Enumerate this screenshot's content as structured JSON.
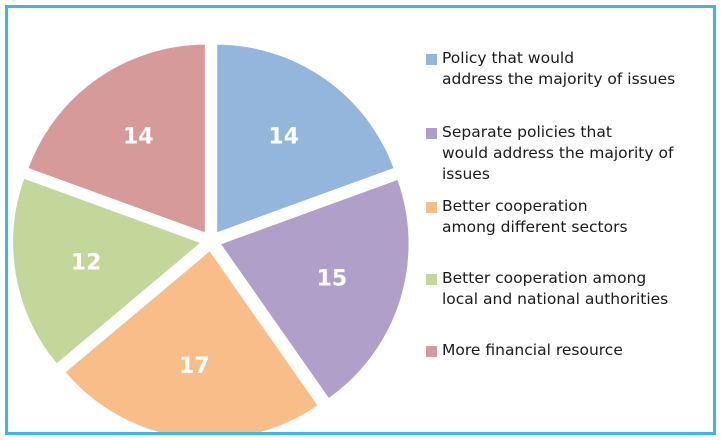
{
  "chart_data": {
    "type": "pie",
    "title": "",
    "slices": [
      {
        "label": "Policy that would\naddress the majority of issues",
        "value": 14,
        "color": "#94b5dc"
      },
      {
        "label": "Separate policies  that\nwould address the majority of\nissues",
        "value": 15,
        "color": "#b0a0c9"
      },
      {
        "label": "Better cooperation\namong different  sectors",
        "value": 17,
        "color": "#f8bd88"
      },
      {
        "label": "Better cooperation  among\nlocal and national  authorities",
        "value": 12,
        "color": "#c3d79a"
      },
      {
        "label": "More financial  resource",
        "value": 14,
        "color": "#d69a9a"
      }
    ],
    "value_labels": [
      "14",
      "15",
      "17",
      "12",
      "14"
    ],
    "start_angle_deg": 0,
    "direction": "clockwise",
    "exploded": true,
    "legend_position": "right"
  }
}
